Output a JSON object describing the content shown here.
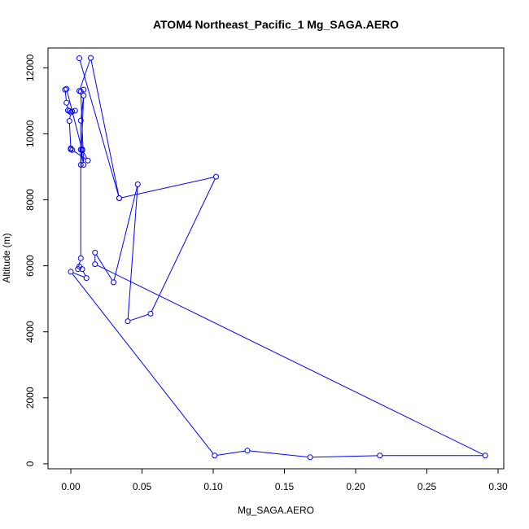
{
  "chart_data": {
    "type": "line",
    "title": "ATOM4 Northeast_Pacific_1 Mg_SAGA.AERO",
    "xlabel": "Mg_SAGA.AERO",
    "ylabel": "Altitude (m)",
    "xlim": [
      -0.016,
      0.304
    ],
    "ylim": [
      -150,
      12600
    ],
    "xticks": [
      0.0,
      0.05,
      0.1,
      0.15,
      0.2,
      0.25,
      0.3
    ],
    "xtick_labels": [
      "0.00",
      "0.05",
      "0.10",
      "0.15",
      "0.20",
      "0.25",
      "0.30"
    ],
    "yticks": [
      0,
      2000,
      4000,
      6000,
      8000,
      10000,
      12000
    ],
    "ytick_labels": [
      "0",
      "2000",
      "4000",
      "6000",
      "8000",
      "10000",
      "12000"
    ],
    "grid": false,
    "series": [
      {
        "color": "#0000ff",
        "marker": "open-circle",
        "x": [
          0.006,
          0.034,
          0.014,
          0.006,
          0.009,
          0.007,
          0.009,
          0.007,
          0.008,
          0.012,
          0.001,
          0.0,
          0.0,
          -0.001,
          0.0,
          -0.001,
          0.003,
          0.001,
          -0.002,
          -0.003,
          -0.004,
          -0.003,
          0.008,
          0.008,
          0.007,
          0.009,
          0.007,
          0.007,
          0.005,
          0.006,
          0.008,
          0.011,
          0.0,
          0.101,
          0.124,
          0.168,
          0.217,
          0.291,
          0.017,
          0.017,
          0.03,
          0.047,
          0.04,
          0.056,
          0.102,
          0.034
        ],
        "y": [
          12290,
          8050,
          12300,
          11300,
          11340,
          11280,
          9060,
          9520,
          9530,
          9190,
          9510,
          9530,
          9560,
          10390,
          10650,
          10690,
          10700,
          10680,
          10710,
          10940,
          11340,
          11360,
          9500,
          9510,
          9060,
          11160,
          10400,
          6230,
          5900,
          5980,
          5900,
          5630,
          5820,
          250,
          400,
          200,
          250,
          250,
          6050,
          6400,
          5500,
          8470,
          4320,
          4550,
          8700,
          8050
        ]
      }
    ]
  }
}
